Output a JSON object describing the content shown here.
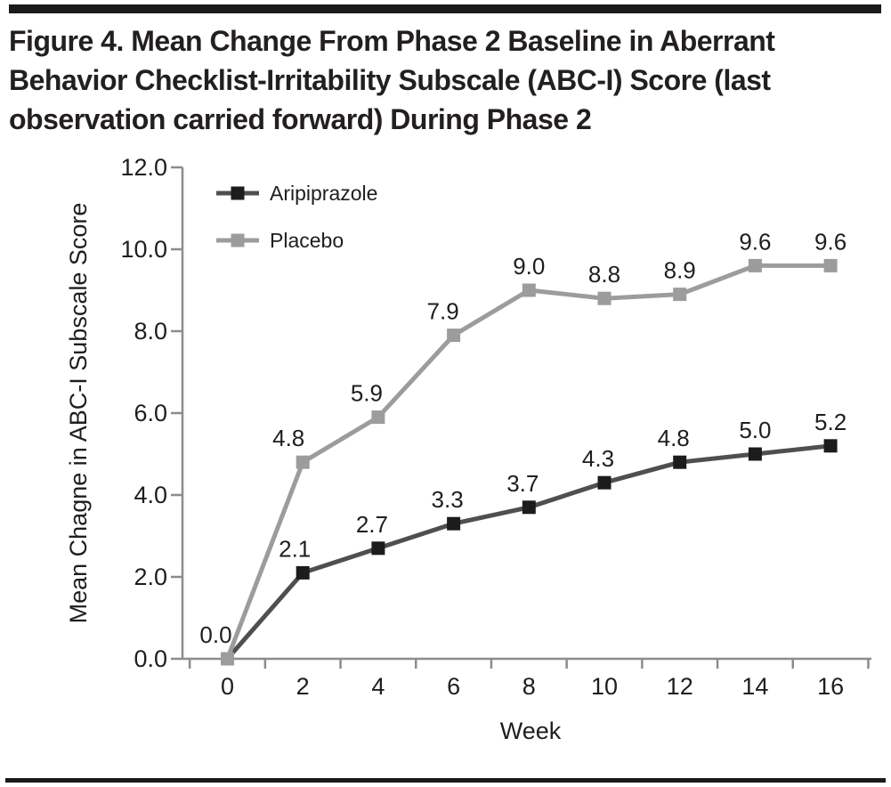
{
  "figure": {
    "title_lines": [
      "Figure 4. Mean Change From Phase 2 Baseline in Aberrant",
      "Behavior Checklist-Irritability Subscale (ABC-I) Score (last",
      "observation carried forward) During Phase 2"
    ]
  },
  "chart_data": {
    "type": "line",
    "x": [
      0,
      2,
      4,
      6,
      8,
      10,
      12,
      14,
      16
    ],
    "series": [
      {
        "name": "Aripiprazole",
        "values": [
          0.0,
          2.1,
          2.7,
          3.3,
          3.7,
          4.3,
          4.8,
          5.0,
          5.2
        ],
        "point_labels": [
          "",
          "2.1",
          "2.7",
          "3.3",
          "3.7",
          "4.3",
          "4.8",
          "5.0",
          "5.2"
        ],
        "line_color": "#4f4f4f",
        "marker_color": "#1c1c1c",
        "marker": "square"
      },
      {
        "name": "Placebo",
        "values": [
          0.0,
          4.8,
          5.9,
          7.9,
          9.0,
          8.8,
          8.9,
          9.6,
          9.6
        ],
        "point_labels": [
          "0.0",
          "4.8",
          "5.9",
          "7.9",
          "9.0",
          "8.8",
          "8.9",
          "9.6",
          "9.6"
        ],
        "line_color": "#9c9c9c",
        "marker_color": "#9c9c9c",
        "marker": "square"
      }
    ],
    "xlabel": "Week",
    "ylabel": "Mean Chagne in ABC-I Subscale Score",
    "xlim": [
      0,
      16
    ],
    "ylim": [
      0,
      12
    ],
    "xtick_labels": [
      "0",
      "2",
      "4",
      "6",
      "8",
      "10",
      "12",
      "14",
      "16"
    ],
    "ytick_labels": [
      "0.0",
      "2.0",
      "4.0",
      "6.0",
      "8.0",
      "10.0",
      "12.0"
    ],
    "grid": false,
    "legend_position": "top-left-inside"
  },
  "colors": {
    "rule": "#1a1a1a",
    "title_text": "#231f20",
    "axis_line": "#8c8c8c",
    "tick_text": "#1e1e1e",
    "data_label_text": "#1e1e1e"
  }
}
